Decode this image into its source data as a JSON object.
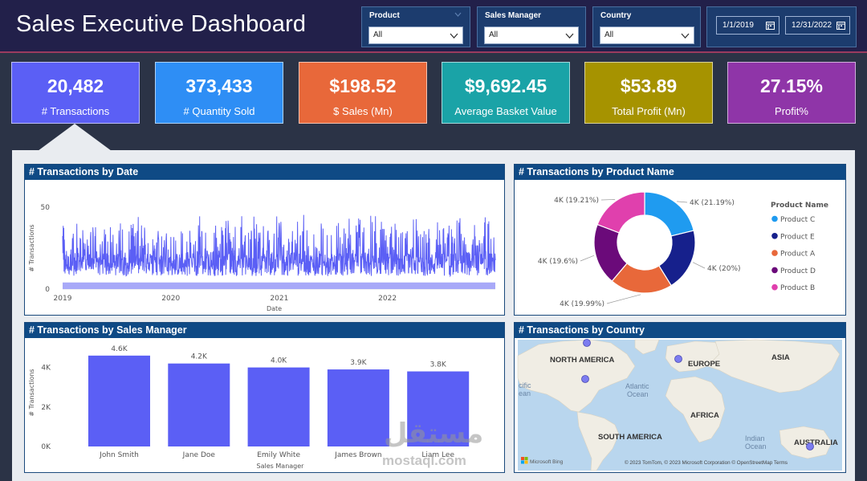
{
  "header": {
    "title": "Sales Executive Dashboard"
  },
  "slicers": [
    {
      "label": "Product",
      "value": "All"
    },
    {
      "label": "Sales Manager",
      "value": "All"
    },
    {
      "label": "Country",
      "value": "All"
    }
  ],
  "date_range": {
    "start": "1/1/2019",
    "end": "12/31/2022"
  },
  "kpis": [
    {
      "value": "20,482",
      "label": "# Transactions",
      "color": "#5b5ff5"
    },
    {
      "value": "373,433",
      "label": "# Quantity Sold",
      "color": "#2e8ef5"
    },
    {
      "value": "$198.52",
      "label": "$ Sales (Mn)",
      "color": "#e8683a"
    },
    {
      "value": "$9,692.45",
      "label": "Average Basket Value",
      "color": "#1aa3a7"
    },
    {
      "value": "$53.89",
      "label": "Total Profit (Mn)",
      "color": "#a69300"
    },
    {
      "value": "27.15%",
      "label": "Profit%",
      "color": "#8f35a8"
    }
  ],
  "panels": {
    "by_date": "# Transactions by Date",
    "by_product": "# Transactions by Product Name",
    "by_manager": "# Transactions by Sales Manager",
    "by_country": "# Transactions by Country"
  },
  "chart_data": [
    {
      "type": "line",
      "title": "# Transactions by Date",
      "xlabel": "Date",
      "ylabel": "# Transactions",
      "x_ticks": [
        "2019",
        "2020",
        "2021",
        "2022"
      ],
      "y_ticks": [
        "0",
        "50"
      ],
      "ylim": [
        0,
        50
      ],
      "xlim": [
        "2019-01-01",
        "2022-12-31"
      ],
      "series_color": "#5b5ff5"
    },
    {
      "type": "pie",
      "title": "# Transactions by Product Name",
      "legend_title": "Product Name",
      "categories": [
        "Product C",
        "Product E",
        "Product A",
        "Product D",
        "Product B"
      ],
      "values": [
        21.19,
        20,
        19.99,
        19.6,
        19.21
      ],
      "labels": [
        "4K (21.19%)",
        "4K (20%)",
        "4K (19.99%)",
        "4K (19.6%)",
        "4K (19.21%)"
      ],
      "colors": [
        "#1f9bf0",
        "#16208c",
        "#e8683a",
        "#6b0a7a",
        "#e040ad"
      ],
      "legend": "right"
    },
    {
      "type": "bar",
      "title": "# Transactions by Sales Manager",
      "xlabel": "Sales Manager",
      "ylabel": "# Transactions",
      "categories": [
        "John Smith",
        "Jane Doe",
        "Emily White",
        "James Brown",
        "Liam Lee"
      ],
      "values": [
        4600,
        4200,
        4000,
        3900,
        3800
      ],
      "data_labels": [
        "4.6K",
        "4.2K",
        "4.0K",
        "3.9K",
        "3.8K"
      ],
      "y_ticks": [
        "0K",
        "2K",
        "4K"
      ],
      "ylim": [
        0,
        5000
      ],
      "color": "#5b5ff5"
    }
  ],
  "map": {
    "labels": [
      "NORTH AMERICA",
      "EUROPE",
      "ASIA",
      "AFRICA",
      "SOUTH AMERICA",
      "AUSTRALIA",
      "Atlantic",
      "Ocean",
      "Indian",
      "Ocean",
      "cific",
      "ean"
    ],
    "footer": "© 2023 TomTom, © 2023 Microsoft Corporation © OpenStreetMap  Terms",
    "brand": "Microsoft Bing"
  },
  "watermark": {
    "arabic": "مستقل",
    "latin": "mostaql.com"
  }
}
